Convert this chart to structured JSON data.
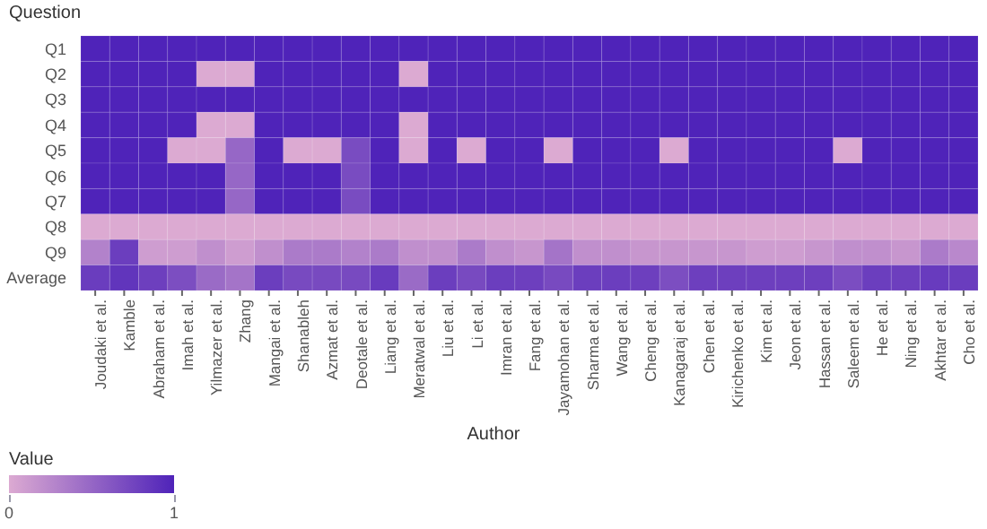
{
  "chart_data": {
    "type": "heatmap",
    "xlabel": "Author",
    "ylabel": "Question",
    "clabel": "Value",
    "categories": [
      "Joudaki et al.",
      "Kamble",
      "Abraham et al.",
      "Imah et al.",
      "Yilmazer et al.",
      "Zhang",
      "Mangai et al.",
      "Shanableh",
      "Azmat et al.",
      "Deotale et al.",
      "Liang et al.",
      "Meratwal et al.",
      "Liu et al.",
      "Li et al.",
      "Imran et al.",
      "Fang et al.",
      "Jayamohan et al.",
      "Sharma et al.",
      "Wang et al.",
      "Cheng et al.",
      "Kanagaraj et al.",
      "Chen et al.",
      "Kirichenko et al.",
      "Kim et al.",
      "Jeon et al.",
      "Hassan et al.",
      "Saleem et al.",
      "He et al.",
      "Ning et al.",
      "Akhtar et al.",
      "Cho et al."
    ],
    "y_categories": [
      "Q1",
      "Q2",
      "Q3",
      "Q4",
      "Q5",
      "Q6",
      "Q7",
      "Q8",
      "Q9",
      "Average"
    ],
    "cells": [
      [
        1,
        1,
        1,
        1,
        1,
        1,
        1,
        1,
        1,
        1,
        1,
        1,
        1,
        1,
        1,
        1,
        1,
        1,
        1,
        1,
        1,
        1,
        1,
        1,
        1,
        1,
        1,
        1,
        1,
        1,
        1
      ],
      [
        1,
        1,
        1,
        1,
        0,
        0,
        1,
        1,
        1,
        1,
        1,
        0,
        1,
        1,
        1,
        1,
        1,
        1,
        1,
        1,
        1,
        1,
        1,
        1,
        1,
        1,
        1,
        1,
        1,
        1,
        1
      ],
      [
        1,
        1,
        1,
        1,
        1,
        1,
        1,
        1,
        1,
        1,
        1,
        1,
        1,
        1,
        1,
        1,
        1,
        1,
        1,
        1,
        1,
        1,
        1,
        1,
        1,
        1,
        1,
        1,
        1,
        1,
        1
      ],
      [
        1,
        1,
        1,
        1,
        0,
        0,
        1,
        1,
        1,
        1,
        1,
        0,
        1,
        1,
        1,
        1,
        1,
        1,
        1,
        1,
        1,
        1,
        1,
        1,
        1,
        1,
        1,
        1,
        1,
        1,
        1
      ],
      [
        1,
        1,
        1,
        0,
        0,
        0.5,
        1,
        0,
        0,
        0.7,
        1,
        0,
        1,
        0,
        1,
        1,
        0,
        1,
        1,
        1,
        0,
        1,
        1,
        1,
        1,
        1,
        0,
        1,
        1,
        1,
        1
      ],
      [
        1,
        1,
        1,
        1,
        1,
        0.5,
        1,
        1,
        1,
        0.7,
        1,
        1,
        1,
        1,
        1,
        1,
        1,
        1,
        1,
        1,
        1,
        1,
        1,
        1,
        1,
        1,
        1,
        1,
        1,
        1,
        1
      ],
      [
        1,
        1,
        1,
        1,
        1,
        0.5,
        1,
        1,
        1,
        0.7,
        1,
        1,
        1,
        1,
        1,
        1,
        1,
        1,
        1,
        1,
        1,
        1,
        1,
        1,
        1,
        1,
        1,
        1,
        1,
        1,
        1
      ],
      [
        0,
        0,
        0,
        0,
        0,
        0,
        0,
        0,
        0,
        0,
        0,
        0,
        0,
        0,
        0,
        0,
        0,
        0,
        0,
        0,
        0,
        0,
        0,
        0,
        0,
        0,
        0,
        0,
        0,
        0,
        0
      ],
      [
        0.3,
        0.8,
        0.1,
        0.1,
        0.2,
        0.1,
        0.2,
        0.35,
        0.35,
        0.3,
        0.35,
        0.2,
        0.2,
        0.35,
        0.2,
        0.15,
        0.4,
        0.2,
        0.2,
        0.15,
        0.15,
        0.15,
        0.15,
        0.1,
        0.1,
        0.15,
        0.2,
        0.2,
        0.15,
        0.35,
        0.25
      ],
      [
        0.81,
        0.87,
        0.79,
        0.68,
        0.47,
        0.4,
        0.8,
        0.71,
        0.71,
        0.71,
        0.82,
        0.47,
        0.8,
        0.71,
        0.8,
        0.79,
        0.71,
        0.8,
        0.8,
        0.79,
        0.68,
        0.79,
        0.79,
        0.79,
        0.79,
        0.79,
        0.69,
        0.8,
        0.79,
        0.82,
        0.81
      ]
    ],
    "clim": [
      0,
      1
    ],
    "cticks": [
      0,
      1
    ]
  }
}
